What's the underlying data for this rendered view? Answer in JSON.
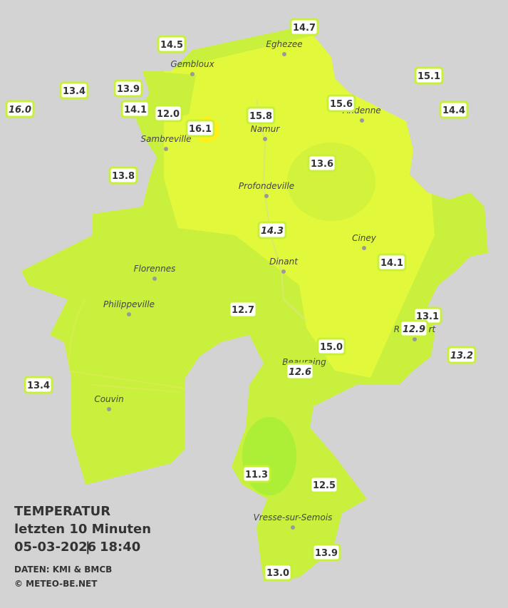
{
  "stations": [
    {
      "label": "14.7",
      "italic": false
    },
    {
      "label": "14.5",
      "italic": false
    },
    {
      "label": "15.1",
      "italic": false
    },
    {
      "label": "13.4",
      "italic": false
    },
    {
      "label": "13.9",
      "italic": false
    },
    {
      "label": "16.0",
      "italic": true
    },
    {
      "label": "14.1",
      "italic": false
    },
    {
      "label": "12.0",
      "italic": false
    },
    {
      "label": "15.6",
      "italic": false
    },
    {
      "label": "14.4",
      "italic": false
    },
    {
      "label": "15.8",
      "italic": false
    },
    {
      "label": "16.1",
      "italic": false
    },
    {
      "label": "13.6",
      "italic": false
    },
    {
      "label": "13.8",
      "italic": false
    },
    {
      "label": "14.3",
      "italic": true
    },
    {
      "label": "14.1",
      "italic": false
    },
    {
      "label": "12.7",
      "italic": false
    },
    {
      "label": "13.1",
      "italic": false
    },
    {
      "label": "12.9",
      "italic": true
    },
    {
      "label": "15.0",
      "italic": false
    },
    {
      "label": "13.2",
      "italic": true
    },
    {
      "label": "12.6",
      "italic": true
    },
    {
      "label": "13.4",
      "italic": false
    },
    {
      "label": "11.3",
      "italic": false
    },
    {
      "label": "12.5",
      "italic": false
    },
    {
      "label": "13.9",
      "italic": false
    },
    {
      "label": "13.0",
      "italic": false
    }
  ],
  "towns": [
    {
      "name": "Eghezee"
    },
    {
      "name": "Gembloux"
    },
    {
      "name": "Andenne"
    },
    {
      "name": "Namur"
    },
    {
      "name": "Sambreville"
    },
    {
      "name": "Profondeville"
    },
    {
      "name": "Ciney"
    },
    {
      "name": "Dinant"
    },
    {
      "name": "Florennes"
    },
    {
      "name": "Philippeville"
    },
    {
      "name": "Rochefort"
    },
    {
      "name": "Beauraing"
    },
    {
      "name": "Couvin"
    },
    {
      "name": "Vresse-sur-Semois"
    }
  ],
  "legend": {
    "title": "TEMPERATUR",
    "period": "letzten 10 Minuten",
    "date": "05-03-2026",
    "time": "18:40",
    "source": "DATEN: KMI & BMCB",
    "copyright": "© METEO-BE.NET"
  }
}
